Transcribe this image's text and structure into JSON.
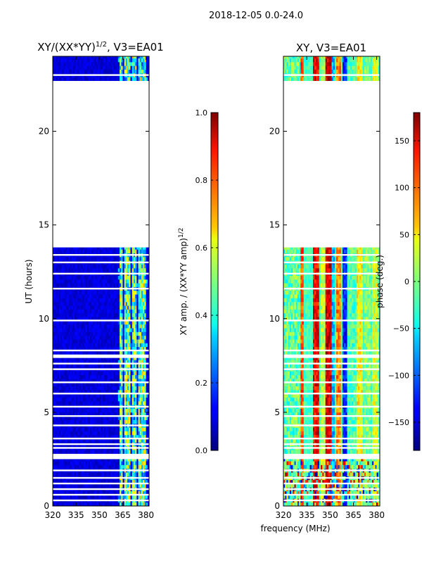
{
  "figure": {
    "suptitle": "2018-12-05 0.0-24.0",
    "shared_xlabel": "frequency (MHz)"
  },
  "chart_data": [
    {
      "type": "heatmap",
      "title_main": "XY/(XX*YY)",
      "title_sup": "1/2",
      "title_tail": ", V3=EA01",
      "xlabel": "",
      "ylabel": "UT (hours)",
      "xlim": [
        320,
        382
      ],
      "ylim": [
        0,
        24
      ],
      "xticks": [
        320,
        335,
        350,
        365,
        380
      ],
      "yticks": [
        0,
        5,
        10,
        15,
        20
      ],
      "colormap": "jet",
      "data_bands_hours": [
        [
          0.0,
          2.5
        ],
        [
          2.8,
          7.9
        ],
        [
          8.1,
          13.8
        ],
        [
          22.7,
          24.0
        ]
      ],
      "flagged_rows_hours": [
        0.3,
        0.6,
        0.9,
        1.2,
        1.5,
        1.9,
        3.1,
        3.3,
        3.6,
        4.3,
        4.8,
        5.3,
        6.0,
        6.6,
        7.3,
        7.6,
        8.3,
        9.9,
        11.6,
        12.4,
        13.0,
        13.4,
        23.0
      ],
      "feature_columns_mhz": [
        [
          363,
          364.5
        ],
        [
          366.5,
          370
        ],
        [
          371.5,
          373.5
        ],
        [
          375.5,
          377.5
        ],
        [
          378.5,
          379.5
        ]
      ],
      "colorbar": {
        "label_main": "XY amp. / (XX*YY amp)",
        "label_sup": "1/2",
        "range": [
          0.0,
          1.0
        ],
        "ticks": [
          "0.0",
          "0.2",
          "0.4",
          "0.6",
          "0.8",
          "1.0"
        ],
        "tick_values": [
          0.0,
          0.2,
          0.4,
          0.6,
          0.8,
          1.0
        ]
      }
    },
    {
      "type": "heatmap",
      "title_main": "XY, V3=EA01",
      "xlabel": "frequency (MHz)",
      "ylabel": "",
      "xlim": [
        320,
        382
      ],
      "ylim": [
        0,
        24
      ],
      "xticks": [
        320,
        335,
        350,
        365,
        380
      ],
      "yticks": [
        0,
        5,
        10,
        15,
        20
      ],
      "colormap": "jet",
      "data_bands_hours": [
        [
          0.0,
          2.5
        ],
        [
          2.8,
          7.9
        ],
        [
          8.1,
          13.8
        ],
        [
          22.7,
          24.0
        ]
      ],
      "flagged_rows_hours": [
        0.3,
        0.6,
        0.9,
        1.2,
        1.5,
        1.9,
        3.1,
        3.3,
        3.6,
        4.3,
        4.8,
        5.3,
        6.0,
        6.6,
        7.3,
        7.6,
        8.3,
        9.9,
        11.6,
        12.4,
        13.0,
        13.4,
        23.0
      ],
      "phase_stripes_mhz": [
        [
          331,
          333,
          0.8
        ],
        [
          339,
          343,
          0.88
        ],
        [
          344,
          347,
          0.55
        ],
        [
          347.5,
          350.5,
          0.92
        ],
        [
          351,
          353,
          0.3
        ],
        [
          354,
          357,
          0.75
        ],
        [
          358,
          361,
          0.15
        ],
        [
          362,
          366,
          0.45
        ],
        [
          367,
          371,
          0.62
        ],
        [
          372,
          376,
          0.5
        ],
        [
          377,
          381,
          0.58
        ]
      ],
      "colorbar": {
        "label_main": "phase (deg.)",
        "range": [
          -180,
          180
        ],
        "ticks": [
          "−150",
          "−100",
          "−50",
          "0",
          "50",
          "100",
          "150"
        ],
        "tick_values": [
          -150,
          -100,
          -50,
          0,
          50,
          100,
          150
        ]
      }
    }
  ]
}
